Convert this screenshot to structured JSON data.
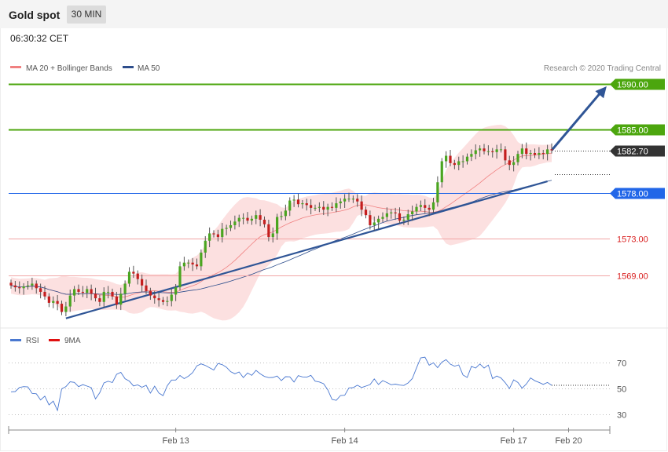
{
  "header": {
    "title": "Gold spot",
    "timeframe": "30 MIN"
  },
  "timestamp": "06:30:32 CET",
  "legend": [
    {
      "label": "MA 20 + Bollinger Bands",
      "color": "#f08080"
    },
    {
      "label": "MA 50",
      "color": "#2e4e8c"
    }
  ],
  "copyright": "Research © 2020 Trading Central",
  "colors": {
    "resistance": "#4ca60e",
    "support": "#2166e8",
    "minor_level": "#f2a5a5",
    "minor_label": "#d92020",
    "current": "#333333",
    "trend": "#2f5596",
    "candle_up": "#4aa520",
    "candle_down": "#c41e1e"
  },
  "chart_data": [
    {
      "type": "candlestick",
      "ylim": [
        1563.5,
        1594
      ],
      "levels": [
        {
          "value": 1590.0,
          "label": "1590.00",
          "kind": "resistance"
        },
        {
          "value": 1585.0,
          "label": "1585.00",
          "kind": "resistance"
        },
        {
          "value": 1582.7,
          "label": "1582.70",
          "kind": "current"
        },
        {
          "value": 1578.0,
          "label": "1578.00",
          "kind": "support"
        },
        {
          "value": 1573.0,
          "label": "1573.00",
          "kind": "minor"
        },
        {
          "value": 1569.0,
          "label": "1569.00",
          "kind": "minor"
        }
      ],
      "x_ticks": [
        {
          "label": "Feb 13",
          "index": 39
        },
        {
          "label": "Feb 14",
          "index": 79
        },
        {
          "label": "Feb 17",
          "index": 119
        },
        {
          "label": "Feb 20",
          "index": 132
        }
      ],
      "n_candles": 129,
      "trendline": [
        [
          13,
          1564.3
        ],
        [
          127,
          1579.3
        ]
      ],
      "projection": [
        [
          128,
          1582.7
        ],
        [
          141,
          1589.7
        ]
      ],
      "closes": [
        1567.9,
        1567.7,
        1567.6,
        1567.8,
        1567.9,
        1568.1,
        1567.6,
        1567.2,
        1566.7,
        1566.0,
        1566.2,
        1565.9,
        1565.0,
        1565.6,
        1566.8,
        1567.5,
        1567.2,
        1567.1,
        1567.5,
        1567.0,
        1566.5,
        1566.1,
        1567.2,
        1567.2,
        1566.7,
        1565.8,
        1567.0,
        1568.1,
        1569.4,
        1569.2,
        1568.6,
        1567.9,
        1567.3,
        1566.8,
        1566.5,
        1566.3,
        1566.1,
        1566.2,
        1566.9,
        1567.7,
        1570.0,
        1570.4,
        1570.4,
        1570.2,
        1570.0,
        1571.5,
        1572.8,
        1573.6,
        1573.5,
        1573.2,
        1574.1,
        1574.2,
        1574.5,
        1574.9,
        1575.3,
        1575.3,
        1575.0,
        1575.2,
        1575.6,
        1575.1,
        1574.6,
        1573.2,
        1573.6,
        1575.4,
        1575.5,
        1576.1,
        1577.2,
        1577.3,
        1576.8,
        1576.9,
        1576.7,
        1576.4,
        1576.4,
        1576.5,
        1576.2,
        1576.5,
        1576.4,
        1576.9,
        1577.1,
        1577.4,
        1577.4,
        1577.4,
        1577.1,
        1576.2,
        1575.6,
        1574.5,
        1574.8,
        1575.2,
        1575.4,
        1575.8,
        1575.9,
        1575.8,
        1575.0,
        1575.1,
        1575.7,
        1576.0,
        1576.5,
        1576.7,
        1576.4,
        1576.2,
        1577.0,
        1579.2,
        1581.5,
        1582.1,
        1581.3,
        1581.1,
        1581.5,
        1581.5,
        1582.0,
        1582.3,
        1582.7,
        1582.9,
        1582.6,
        1582.6,
        1582.5,
        1582.8,
        1582.8,
        1581.6,
        1581.1,
        1581.4,
        1582.3,
        1582.9,
        1582.3,
        1582.4,
        1582.2,
        1582.4,
        1582.3,
        1582.8,
        1582.7
      ],
      "rsi": {
        "ylim": [
          20,
          80
        ],
        "ticks": [
          70,
          50,
          30
        ]
      },
      "rsi_values": [
        47.4,
        47.6,
        50.7,
        51.4,
        51.2,
        46.2,
        45.9,
        41.2,
        44.1,
        37.4,
        40.3,
        33.2,
        49.7,
        51.4,
        55.1,
        54.6,
        51.4,
        52.9,
        51.8,
        50.6,
        42.0,
        46.7,
        54.2,
        55.5,
        54.5,
        60.8,
        62.3,
        57.4,
        55.6,
        51.9,
        52.7,
        50.9,
        52.4,
        46.4,
        51.7,
        46.5,
        44.5,
        52.1,
        56.4,
        56.4,
        59.9,
        57.5,
        59.4,
        62.1,
        67.3,
        68.8,
        67.6,
        65.8,
        64.1,
        69.1,
        68.2,
        66.2,
        62.8,
        61.2,
        62.6,
        58.3,
        61.8,
        60.0,
        63.8,
        61.2,
        59.2,
        58.3,
        58.4,
        59.5,
        56.0,
        59.0,
        58.9,
        54.9,
        59.8,
        58.8,
        58.6,
        60.0,
        55.6,
        54.9,
        53.6,
        48.9,
        41.6,
        40.9,
        44.6,
        44.8,
        50.4,
        50.6,
        52.5,
        50.7,
        51.8,
        52.9,
        57.3,
        53.0,
        56.0,
        54.5,
        52.8,
        53.3,
        52.6,
        52.3,
        54.2,
        57.5,
        65.7,
        73.4,
        73.9,
        67.8,
        69.6,
        65.9,
        70.1,
        72.0,
        68.6,
        67.0,
        68.0,
        60.3,
        58.4,
        66.8,
        65.6,
        68.7,
        65.6,
        67.9,
        57.5,
        59.5,
        58.0,
        54.4,
        49.9,
        56.6,
        54.6,
        50.2,
        53.4,
        58.0,
        55.9,
        54.6,
        53.1,
        54.6,
        52.4
      ]
    }
  ],
  "rsi_legend": [
    {
      "label": "RSI",
      "color": "#4a78d0"
    },
    {
      "label": "9MA",
      "color": "#e01010"
    }
  ]
}
